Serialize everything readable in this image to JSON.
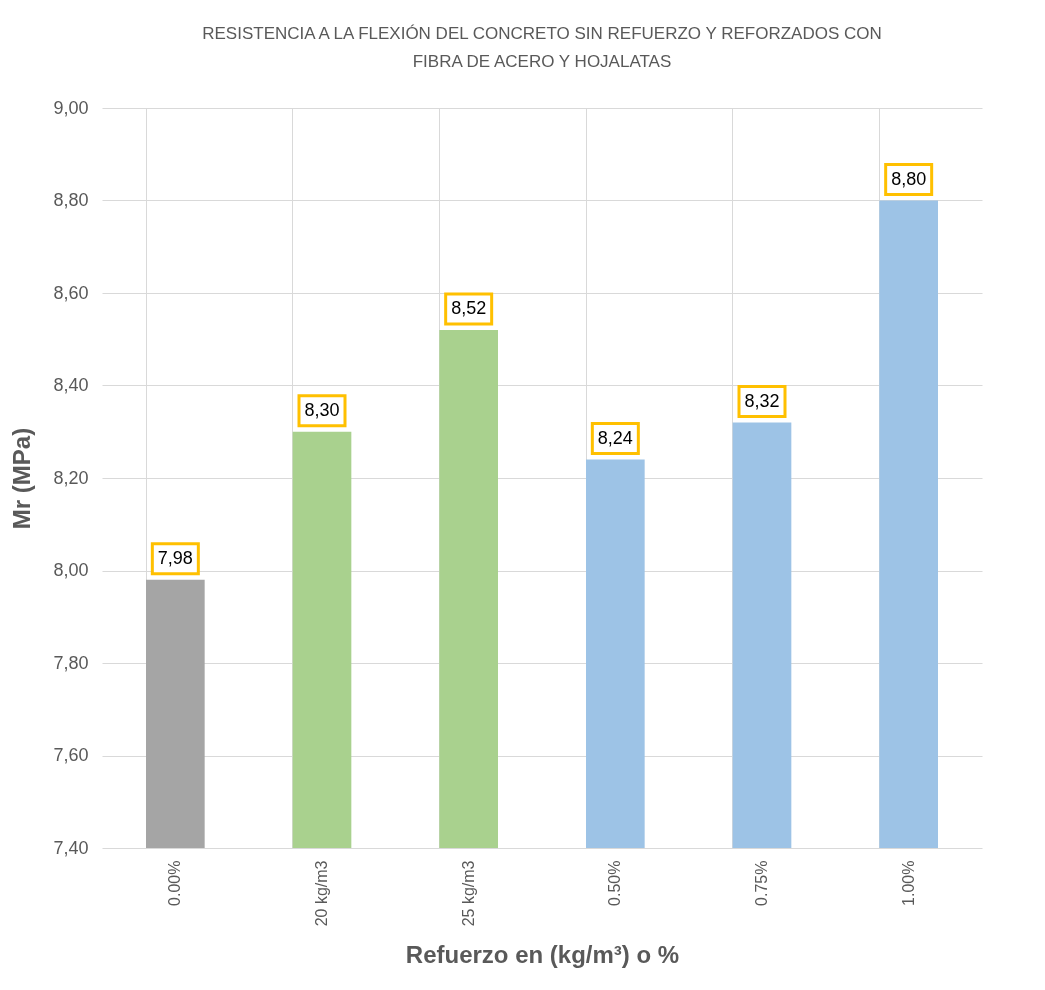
{
  "chart_data": {
    "type": "bar",
    "title": "RESISTENCIA A LA FLEXIÓN DEL CONCRETO SIN REFUERZO Y REFORZADOS CON FIBRA DE ACERO Y HOJALATAS",
    "xlabel": "Refuerzo en (kg/m³) o %",
    "ylabel": "Mr (MPa)",
    "categories": [
      "0.00%",
      "20 kg/m3",
      "25 kg/m3",
      "0.50%",
      "0.75%",
      "1.00%"
    ],
    "values": [
      7.98,
      8.3,
      8.52,
      8.24,
      8.32,
      8.8
    ],
    "colors": [
      "#a5a5a5",
      "#a9d18e",
      "#a9d18e",
      "#9dc3e6",
      "#9dc3e6",
      "#9dc3e6"
    ],
    "value_labels": [
      "7,98",
      "8,30",
      "8,52",
      "8,24",
      "8,32",
      "8,80"
    ],
    "ylim": [
      7.4,
      9.0
    ],
    "yticks": [
      {
        "value": 7.4,
        "label": "7,40"
      },
      {
        "value": 7.6,
        "label": "7,60"
      },
      {
        "value": 7.8,
        "label": "7,80"
      },
      {
        "value": 8.0,
        "label": "8,00"
      },
      {
        "value": 8.2,
        "label": "8,20"
      },
      {
        "value": 8.4,
        "label": "8,40"
      },
      {
        "value": 8.6,
        "label": "8,60"
      },
      {
        "value": 8.8,
        "label": "8,80"
      },
      {
        "value": 9.0,
        "label": "9,00"
      }
    ],
    "grid": true
  }
}
